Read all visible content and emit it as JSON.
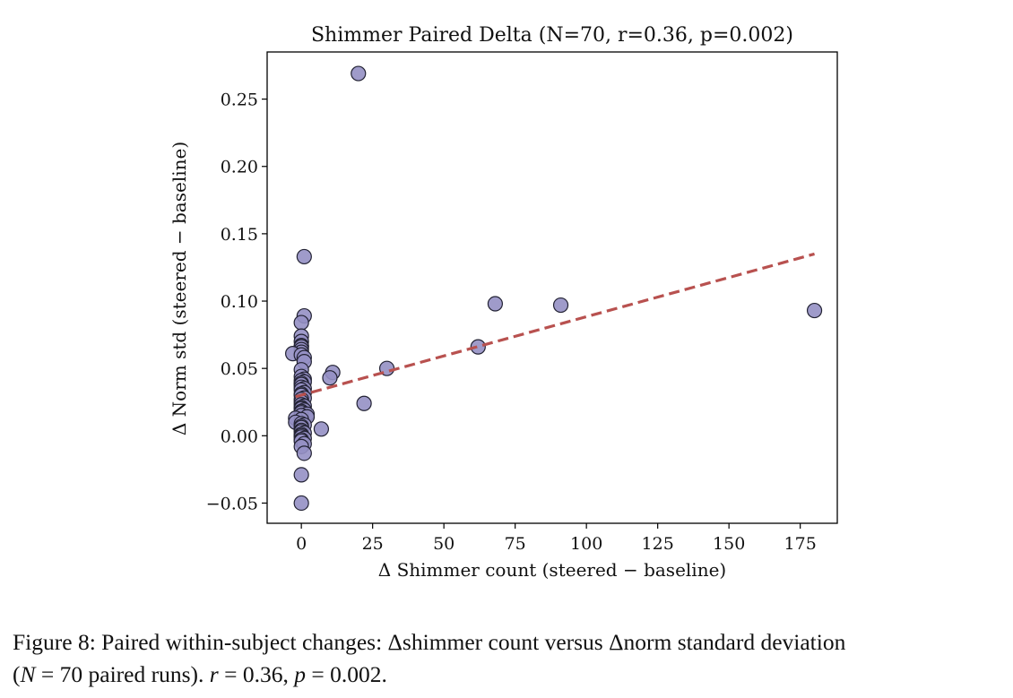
{
  "chart_data": {
    "type": "scatter",
    "title": "Shimmer Paired Delta (N=70, r=0.36, p=0.002)",
    "xlabel": "Δ Shimmer count (steered − baseline)",
    "ylabel": "Δ Norm std (steered − baseline)",
    "xlim": [
      -12,
      188
    ],
    "ylim": [
      -0.065,
      0.285
    ],
    "xticks": [
      0,
      25,
      50,
      75,
      100,
      125,
      150,
      175
    ],
    "xtick_labels": [
      "0",
      "25",
      "50",
      "75",
      "100",
      "125",
      "150",
      "175"
    ],
    "yticks": [
      -0.05,
      0.0,
      0.05,
      0.1,
      0.15,
      0.2,
      0.25
    ],
    "ytick_labels": [
      "−0.05",
      "0.00",
      "0.05",
      "0.10",
      "0.15",
      "0.20",
      "0.25"
    ],
    "grid": false,
    "point_color": "#9590c4",
    "point_edge_color": "#222233",
    "trend_color": "#b8514f",
    "points": [
      {
        "x": 20,
        "y": 0.269
      },
      {
        "x": 1,
        "y": 0.133
      },
      {
        "x": 68,
        "y": 0.098
      },
      {
        "x": 91,
        "y": 0.097
      },
      {
        "x": 180,
        "y": 0.093
      },
      {
        "x": 1,
        "y": 0.089
      },
      {
        "x": 0,
        "y": 0.084
      },
      {
        "x": 0,
        "y": 0.074
      },
      {
        "x": 0,
        "y": 0.07
      },
      {
        "x": 0,
        "y": 0.067
      },
      {
        "x": 0,
        "y": 0.066
      },
      {
        "x": 62,
        "y": 0.066
      },
      {
        "x": 0,
        "y": 0.064
      },
      {
        "x": 0,
        "y": 0.062
      },
      {
        "x": -3,
        "y": 0.061
      },
      {
        "x": 0,
        "y": 0.06
      },
      {
        "x": 1,
        "y": 0.058
      },
      {
        "x": 1,
        "y": 0.055
      },
      {
        "x": 30,
        "y": 0.05
      },
      {
        "x": 0,
        "y": 0.049
      },
      {
        "x": 11,
        "y": 0.047
      },
      {
        "x": 0,
        "y": 0.044
      },
      {
        "x": 10,
        "y": 0.043
      },
      {
        "x": 1,
        "y": 0.042
      },
      {
        "x": 0,
        "y": 0.041
      },
      {
        "x": 1,
        "y": 0.04
      },
      {
        "x": 0,
        "y": 0.039
      },
      {
        "x": 0,
        "y": 0.038
      },
      {
        "x": 0,
        "y": 0.036
      },
      {
        "x": 1,
        "y": 0.035
      },
      {
        "x": 0,
        "y": 0.034
      },
      {
        "x": 1,
        "y": 0.032
      },
      {
        "x": 0,
        "y": 0.031
      },
      {
        "x": 0,
        "y": 0.03
      },
      {
        "x": 1,
        "y": 0.028
      },
      {
        "x": 0,
        "y": 0.027
      },
      {
        "x": 0,
        "y": 0.025
      },
      {
        "x": 22,
        "y": 0.024
      },
      {
        "x": 0,
        "y": 0.023
      },
      {
        "x": 1,
        "y": 0.022
      },
      {
        "x": 0,
        "y": 0.021
      },
      {
        "x": 0,
        "y": 0.02
      },
      {
        "x": 1,
        "y": 0.019
      },
      {
        "x": 0,
        "y": 0.018
      },
      {
        "x": 0,
        "y": 0.017
      },
      {
        "x": 2,
        "y": 0.016
      },
      {
        "x": 0,
        "y": 0.015
      },
      {
        "x": 2,
        "y": 0.014
      },
      {
        "x": -2,
        "y": 0.013
      },
      {
        "x": 0,
        "y": 0.012
      },
      {
        "x": -2,
        "y": 0.01
      },
      {
        "x": 0,
        "y": 0.009
      },
      {
        "x": 1,
        "y": 0.008
      },
      {
        "x": 0,
        "y": 0.007
      },
      {
        "x": 0,
        "y": 0.006
      },
      {
        "x": 7,
        "y": 0.005
      },
      {
        "x": 0,
        "y": 0.004
      },
      {
        "x": 0,
        "y": 0.003
      },
      {
        "x": 1,
        "y": 0.002
      },
      {
        "x": 0,
        "y": 0.001
      },
      {
        "x": 0,
        "y": 0.0
      },
      {
        "x": 0,
        "y": -0.001
      },
      {
        "x": 1,
        "y": -0.002
      },
      {
        "x": 0,
        "y": -0.003
      },
      {
        "x": 0,
        "y": -0.004
      },
      {
        "x": 1,
        "y": -0.006
      },
      {
        "x": 0,
        "y": -0.008
      },
      {
        "x": 1,
        "y": -0.013
      },
      {
        "x": 0,
        "y": -0.029
      },
      {
        "x": 0,
        "y": -0.05
      }
    ],
    "trend_line": {
      "x": [
        -2,
        180
      ],
      "y": [
        0.029,
        0.135
      ]
    }
  },
  "caption": {
    "line1": "Figure 8: Paired within-subject changes: Δshimmer count versus Δnorm standard deviation",
    "line2_open": "(",
    "line2_n": "N",
    "line2_eq": " = 70 paired runs). ",
    "line2_r": "r",
    "line2_r_val": " = 0.36, ",
    "line2_p": "p",
    "line2_p_val": " = 0.002."
  }
}
